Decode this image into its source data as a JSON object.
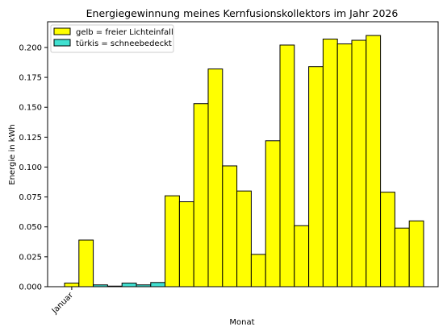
{
  "chart_data": {
    "type": "bar",
    "title": "Energiegewinnung meines Kernfusionskollektors im Jahr 2026",
    "xlabel": "Monat",
    "ylabel": "Energie in kWh",
    "ylim": [
      0,
      0.2215
    ],
    "yticks": [
      "0.000",
      "0.025",
      "0.050",
      "0.075",
      "0.100",
      "0.125",
      "0.150",
      "0.175",
      "0.200"
    ],
    "x_tick_labels": [
      "Januar"
    ],
    "grid": false,
    "legend_position": "top-left",
    "legend": [
      {
        "label": "gelb = freier Lichteinfall",
        "color": "#ffff00"
      },
      {
        "label": "türkis = schneebedeckt",
        "color": "#40e0d0"
      }
    ],
    "colors": {
      "yellow": "#ffff00",
      "turquoise": "#40e0d0",
      "edge": "#000000"
    },
    "values": [
      0.003,
      0.039,
      0.0015,
      0.0005,
      0.003,
      0.0015,
      0.0035,
      0.076,
      0.071,
      0.153,
      0.182,
      0.101,
      0.08,
      0.027,
      0.122,
      0.202,
      0.051,
      0.184,
      0.207,
      0.203,
      0.206,
      0.21,
      0.079,
      0.049,
      0.055
    ],
    "bar_colors": [
      "yellow",
      "yellow",
      "turquoise",
      "turquoise",
      "turquoise",
      "turquoise",
      "turquoise",
      "yellow",
      "yellow",
      "yellow",
      "yellow",
      "yellow",
      "yellow",
      "yellow",
      "yellow",
      "yellow",
      "yellow",
      "yellow",
      "yellow",
      "yellow",
      "yellow",
      "yellow",
      "yellow",
      "yellow",
      "yellow"
    ]
  }
}
